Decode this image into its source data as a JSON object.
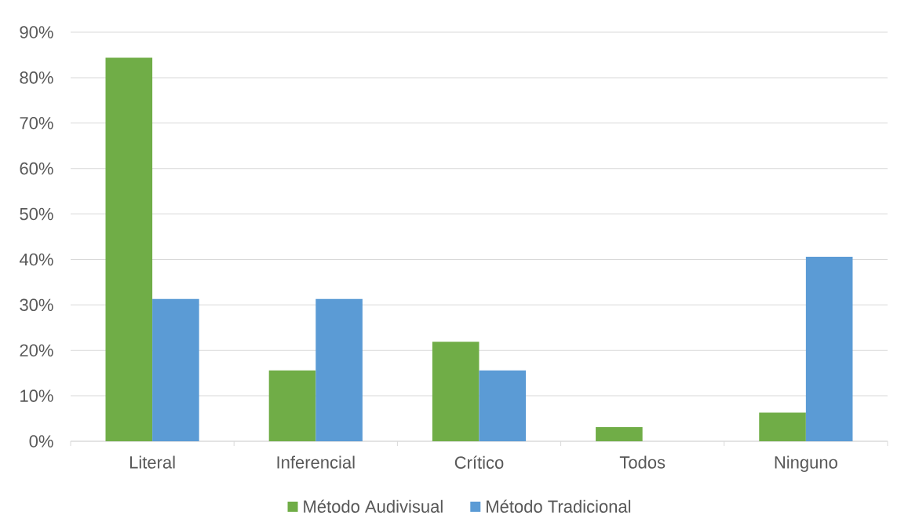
{
  "chart_data": {
    "type": "bar",
    "categories": [
      "Literal",
      "Inferencial",
      "Crítico",
      "Todos",
      "Ninguno"
    ],
    "series": [
      {
        "name": "Método Audivisual",
        "color": "#70ad47",
        "values": [
          84.4,
          15.6,
          21.9,
          3.1,
          6.3
        ]
      },
      {
        "name": "Método Tradicional",
        "color": "#5b9bd5",
        "values": [
          31.3,
          31.3,
          15.6,
          0,
          40.6
        ]
      }
    ],
    "ylim": [
      0,
      90
    ],
    "yticks": [
      {
        "value": 0,
        "label": "0%"
      },
      {
        "value": 10,
        "label": "10%"
      },
      {
        "value": 20,
        "label": "20%"
      },
      {
        "value": 30,
        "label": "30%"
      },
      {
        "value": 40,
        "label": "40%"
      },
      {
        "value": 50,
        "label": "50%"
      },
      {
        "value": 60,
        "label": "60%"
      },
      {
        "value": 70,
        "label": "70%"
      },
      {
        "value": 80,
        "label": "80%"
      },
      {
        "value": 90,
        "label": "90%"
      }
    ],
    "grid": "y",
    "legend": "bottom"
  }
}
